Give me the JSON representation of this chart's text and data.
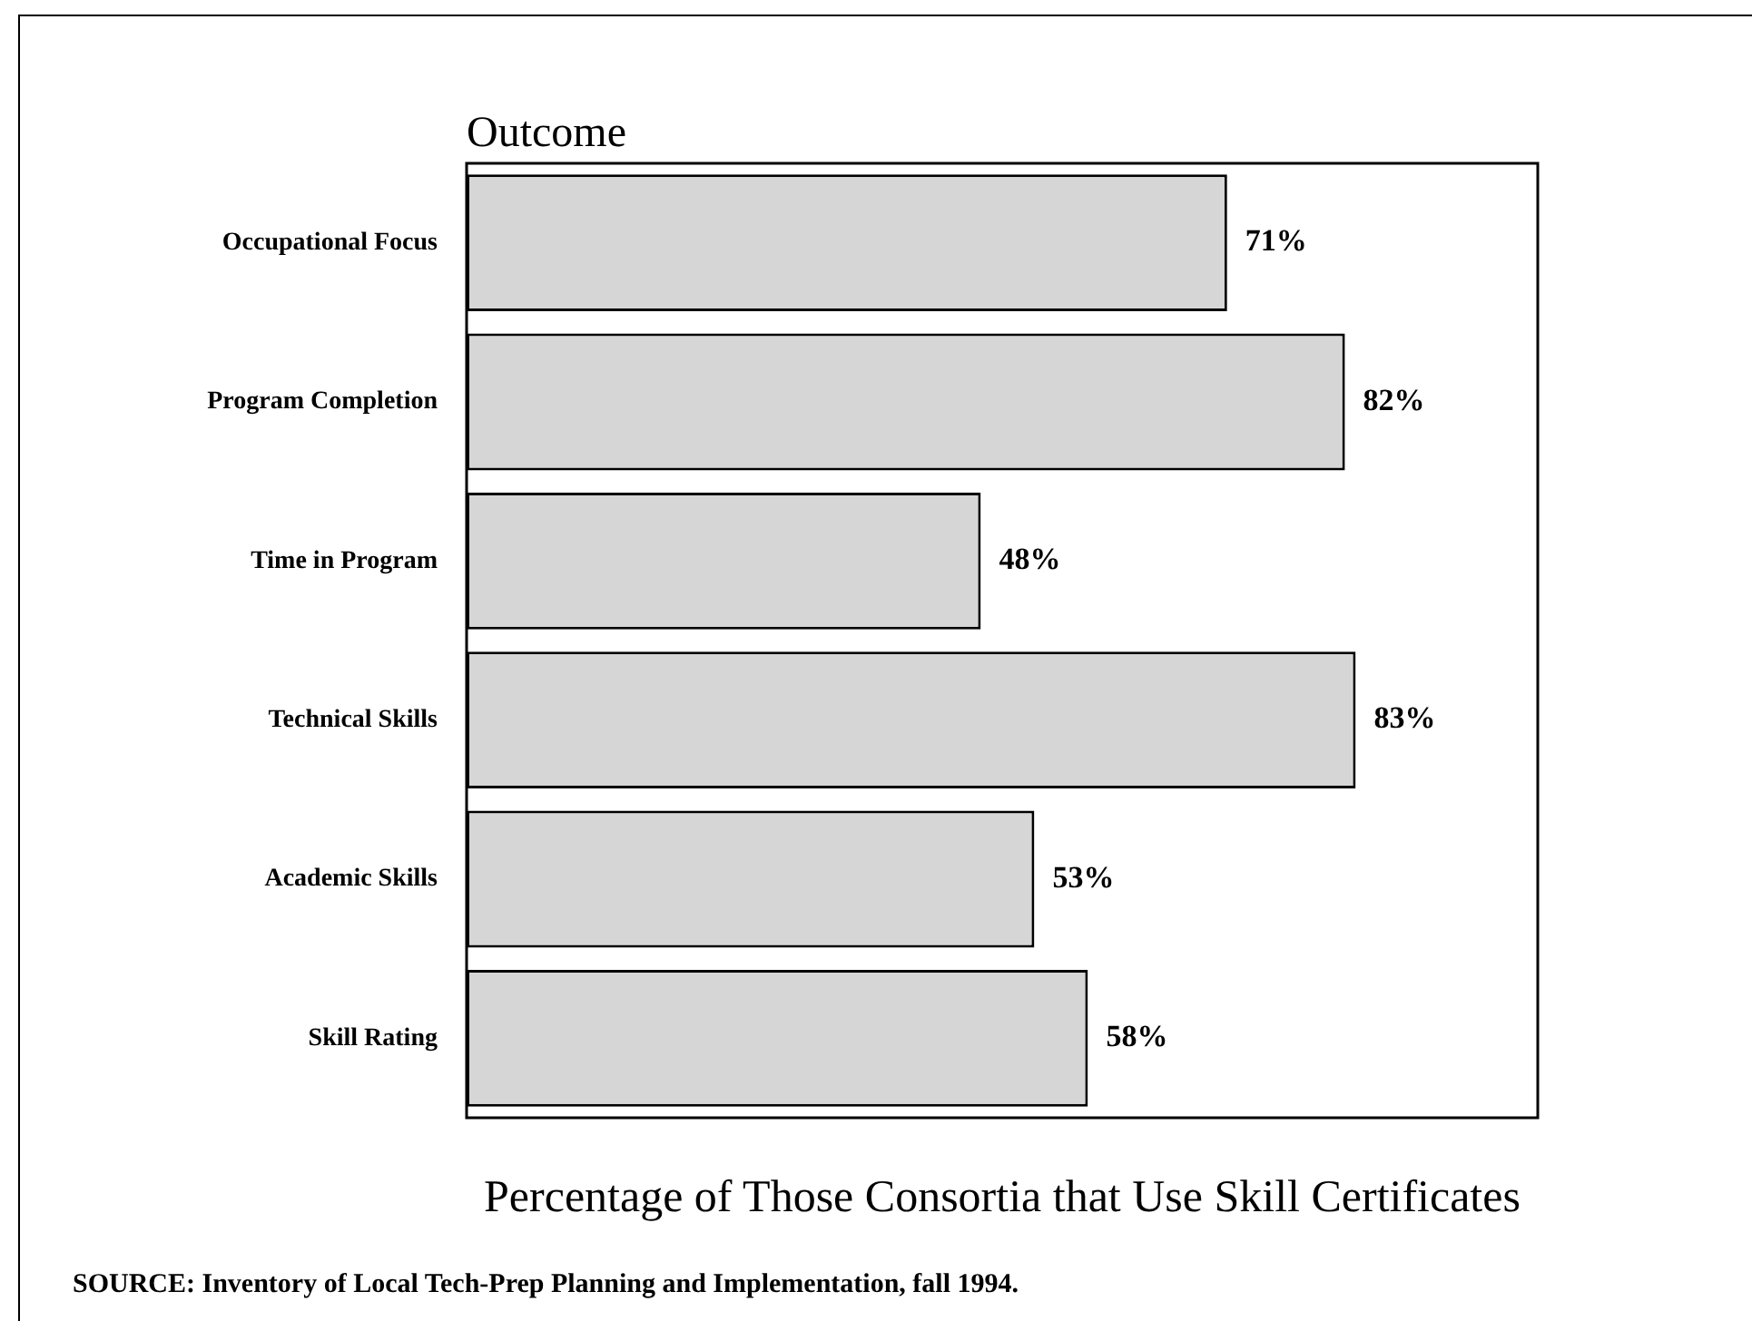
{
  "chart_data": {
    "type": "bar",
    "orientation": "horizontal",
    "ylabel": "Outcome",
    "xlabel": "Percentage of Those Consortia that Use Skill Certificates",
    "categories": [
      "Occupational Focus",
      "Program Completion",
      "Time in Program",
      "Technical Skills",
      "Academic Skills",
      "Skill Rating"
    ],
    "values": [
      71,
      82,
      48,
      83,
      53,
      58
    ],
    "value_labels": [
      "71%",
      "82%",
      "48%",
      "83%",
      "53%",
      "58%"
    ],
    "color": "#d6d6d6",
    "xlim": [
      0,
      100
    ],
    "tick_labels": "y",
    "grid": false,
    "legend": false,
    "annotations": [
      "SOURCE:  Inventory of Local Tech-Prep Planning and Implementation, fall 1994."
    ]
  }
}
